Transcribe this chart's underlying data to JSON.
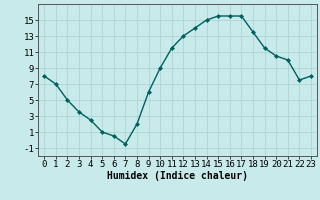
{
  "x": [
    0,
    1,
    2,
    3,
    4,
    5,
    6,
    7,
    8,
    9,
    10,
    11,
    12,
    13,
    14,
    15,
    16,
    17,
    18,
    19,
    20,
    21,
    22,
    23
  ],
  "y": [
    8,
    7,
    5,
    3.5,
    2.5,
    1,
    0.5,
    -0.5,
    2,
    6,
    9,
    11.5,
    13,
    14,
    15,
    15.5,
    15.5,
    15.5,
    13.5,
    11.5,
    10.5,
    10,
    7.5,
    8
  ],
  "line_color": "#006060",
  "marker": "D",
  "marker_size": 2,
  "bg_color": "#c8eaea",
  "grid_color": "#aed4d4",
  "xlabel": "Humidex (Indice chaleur)",
  "xlabel_fontsize": 7,
  "ylim": [
    -2,
    17
  ],
  "xlim": [
    -0.5,
    23.5
  ],
  "yticks": [
    -1,
    1,
    3,
    5,
    7,
    9,
    11,
    13,
    15
  ],
  "xticks": [
    0,
    1,
    2,
    3,
    4,
    5,
    6,
    7,
    8,
    9,
    10,
    11,
    12,
    13,
    14,
    15,
    16,
    17,
    18,
    19,
    20,
    21,
    22,
    23
  ],
  "tick_fontsize": 6.5
}
